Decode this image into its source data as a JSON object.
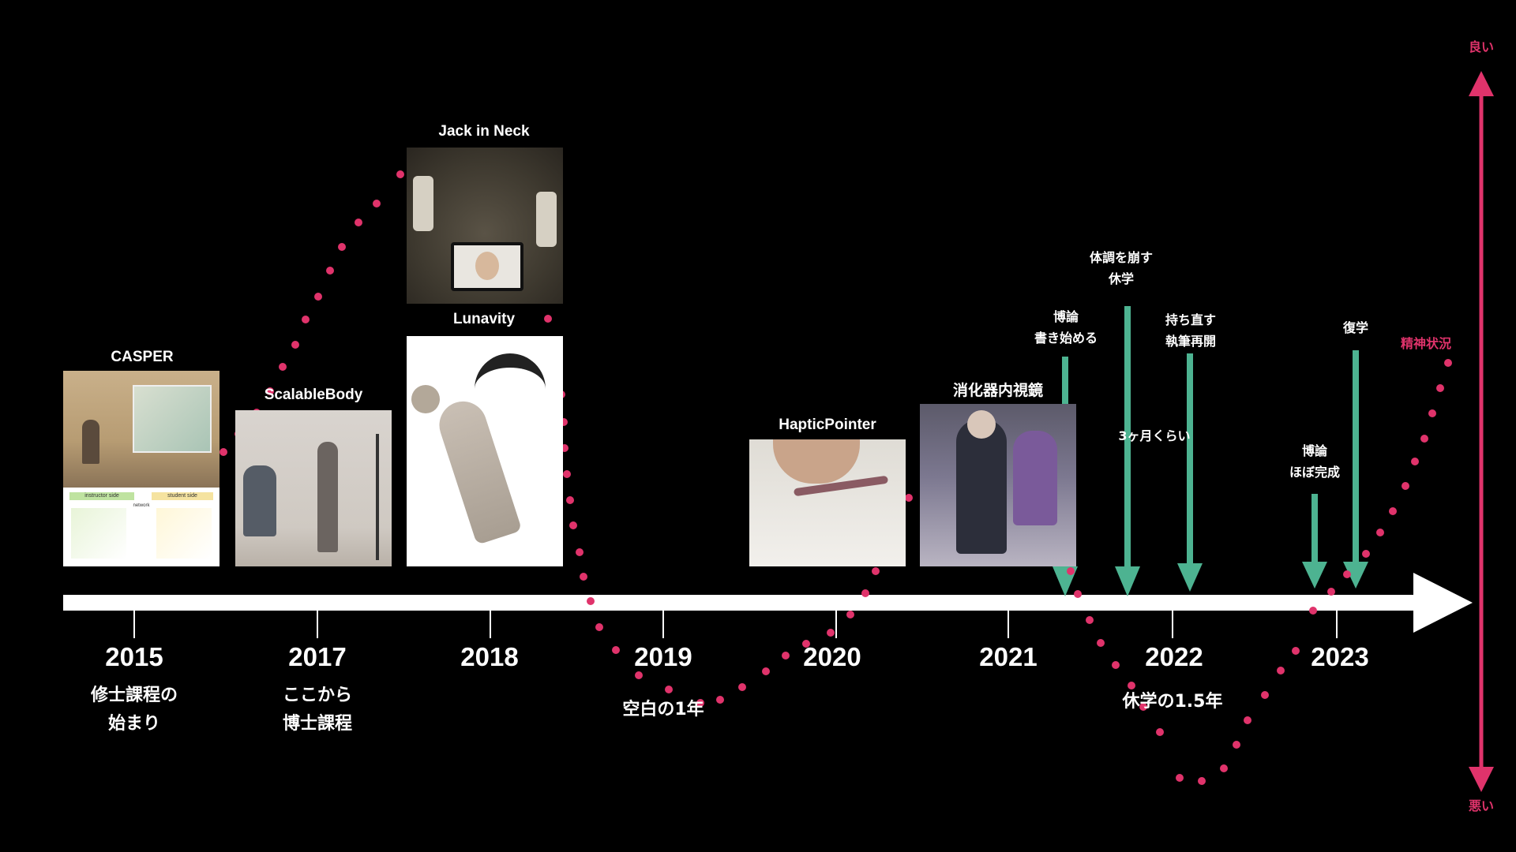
{
  "years": [
    {
      "label": "2015",
      "note": [
        "修士課程の",
        "始まり"
      ]
    },
    {
      "label": "2017",
      "note": [
        "ここから",
        "博士課程"
      ]
    },
    {
      "label": "2018",
      "note": []
    },
    {
      "label": "2019",
      "note": [
        "空白の1年"
      ]
    },
    {
      "label": "2020",
      "note": []
    },
    {
      "label": "2021",
      "note": []
    },
    {
      "label": "2022",
      "note": [
        "休学の1.5年"
      ]
    },
    {
      "label": "2023",
      "note": []
    }
  ],
  "projects": {
    "casper": "CASPER",
    "casper_labels": {
      "left": "instructor side",
      "right": "student side",
      "mid": "network"
    },
    "scalablebody": "ScalableBody",
    "jackinneck": "Jack in Neck",
    "lunavity": "Lunavity",
    "hapticpointer": "HapticPointer",
    "endoscopy": "消化器内視鏡"
  },
  "events": {
    "thesis_start": [
      "博論",
      "書き始める"
    ],
    "illness": [
      "体調を崩す",
      "休学"
    ],
    "three_months": "3ヶ月くらい",
    "resume_writing": [
      "持ち直す",
      "執筆再開"
    ],
    "thesis_done": [
      "博論",
      "ほぼ完成"
    ],
    "return": [
      "復学"
    ]
  },
  "axis": {
    "good": "良い",
    "bad": "悪い",
    "curve_label": "精神状況"
  },
  "colors": {
    "accent": "#e0336b",
    "arrow": "#4db391",
    "timeline": "#ffffff",
    "background": "#000000"
  }
}
